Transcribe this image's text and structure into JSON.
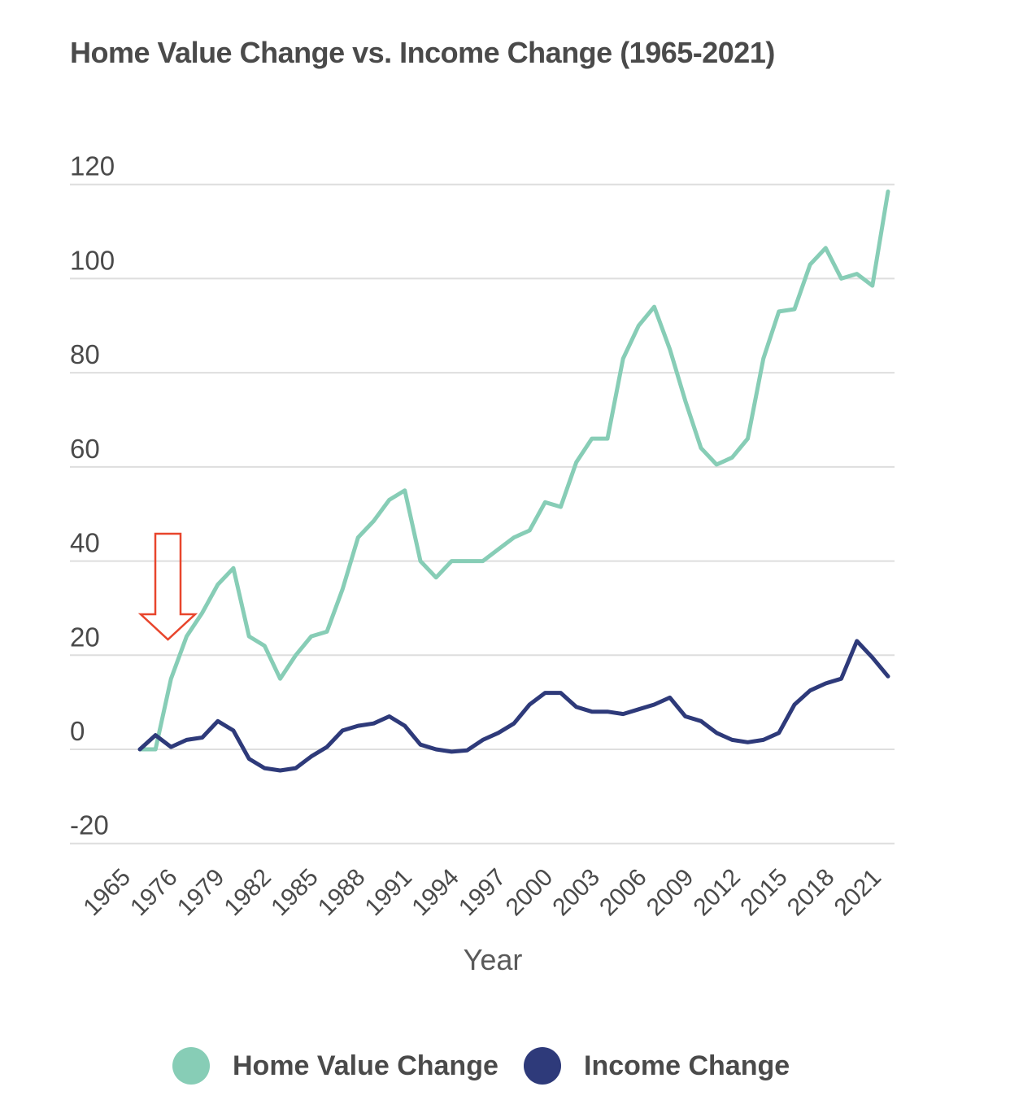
{
  "chart_data": {
    "type": "line",
    "title": "Home Value Change vs. Income Change (1965-2021)",
    "xlabel": "Year",
    "ylabel": "",
    "ylim": [
      -20,
      120
    ],
    "y_ticks": [
      "120",
      "100",
      "80",
      "60",
      "40",
      "20",
      "0",
      "-20"
    ],
    "x_tick_labels": [
      "1965",
      "1976",
      "1979",
      "1982",
      "1985",
      "1988",
      "1991",
      "1994",
      "1997",
      "2000",
      "2003",
      "2006",
      "2009",
      "2012",
      "2015",
      "2018",
      "2021"
    ],
    "grid": true,
    "legend_position": "bottom",
    "series": [
      {
        "name": "Home Value Change",
        "color": "#87cdb6",
        "values": [
          0,
          0,
          15,
          24,
          29,
          35,
          38.5,
          24,
          22,
          15,
          20,
          24,
          25,
          34,
          45,
          48.5,
          53,
          55,
          40,
          36.5,
          40,
          40,
          40,
          42.5,
          45,
          46.5,
          52.5,
          51.5,
          61,
          66,
          66,
          83,
          90,
          94,
          85,
          74,
          64,
          60.5,
          62,
          66,
          83,
          93,
          93.5,
          103,
          106.5,
          100,
          101,
          98.5,
          118.5
        ]
      },
      {
        "name": "Income Change",
        "color": "#2e3a7a",
        "values": [
          0,
          3,
          0.5,
          2,
          2.5,
          6,
          4,
          -2,
          -4,
          -4.5,
          -4,
          -1.5,
          0.5,
          4,
          5,
          5.5,
          7,
          5,
          1,
          0,
          -0.5,
          -0.2,
          2,
          3.5,
          5.5,
          9.5,
          12,
          12,
          9,
          8,
          8,
          7.5,
          8.5,
          9.5,
          11,
          7,
          6,
          3.5,
          2,
          1.5,
          2,
          3.5,
          9.5,
          12.5,
          14,
          15,
          23,
          19.5,
          15.5
        ]
      }
    ]
  },
  "annotation": {
    "arrow_color": "#e8452c"
  }
}
